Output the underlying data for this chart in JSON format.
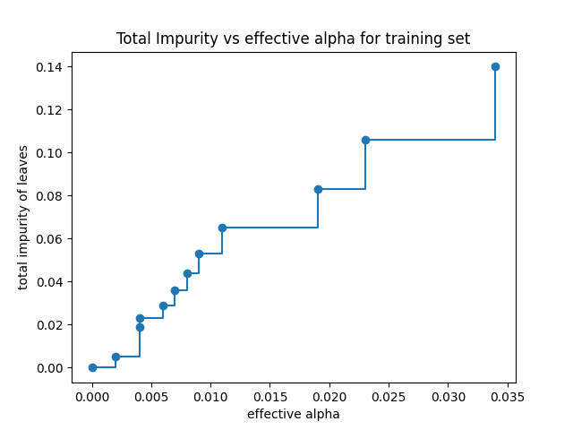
{
  "title": "Total Impurity vs effective alpha for training set",
  "xlabel": "effective alpha",
  "ylabel": "total impurity of leaves",
  "alphas": [
    0.0,
    0.002,
    0.004,
    0.004,
    0.006,
    0.007,
    0.008,
    0.009,
    0.011,
    0.019,
    0.023,
    0.034
  ],
  "impurities": [
    0.0,
    0.005,
    0.019,
    0.023,
    0.029,
    0.036,
    0.044,
    0.053,
    0.065,
    0.083,
    0.106,
    0.14
  ],
  "line_color": "#1f77b4",
  "marker": "o",
  "markersize": 6,
  "linewidth": 1.5,
  "figsize": [
    6.4,
    4.8
  ],
  "dpi": 100
}
